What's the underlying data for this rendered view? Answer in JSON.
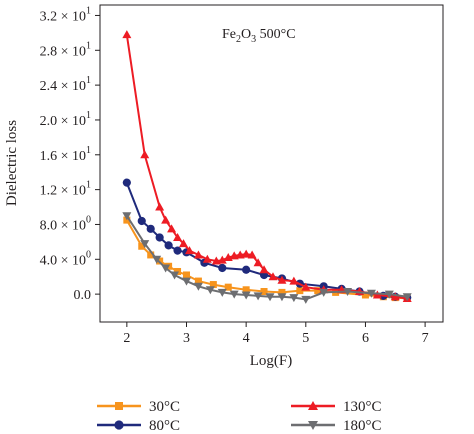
{
  "chart_data": {
    "type": "line",
    "annotation": {
      "base": "Fe",
      "sub1": "2",
      "mid": "O",
      "sub2": "3",
      "rest": " 500°C"
    },
    "xlabel": "Log(F)",
    "ylabel": "Dielectric loss",
    "xlim": [
      1.55,
      7.3
    ],
    "ylim": [
      -3.2,
      33.2
    ],
    "x_ticks": [
      2,
      3,
      4,
      5,
      6,
      7
    ],
    "x_tick_labels": [
      "2",
      "3",
      "4",
      "5",
      "6",
      "7"
    ],
    "y_ticks": [
      0,
      4,
      8,
      12,
      16,
      20,
      24,
      28,
      32
    ],
    "y_tick_labels": [
      {
        "mant": "0.0",
        "exp": ""
      },
      {
        "mant": "4.0 × 10",
        "exp": "0"
      },
      {
        "mant": "8.0 × 10",
        "exp": "0"
      },
      {
        "mant": "1.2 × 10",
        "exp": "1"
      },
      {
        "mant": "1.6 × 10",
        "exp": "1"
      },
      {
        "mant": "2.0 × 10",
        "exp": "1"
      },
      {
        "mant": "2.4 × 10",
        "exp": "1"
      },
      {
        "mant": "2.8 × 10",
        "exp": "1"
      },
      {
        "mant": "3.2 × 10",
        "exp": "1"
      }
    ],
    "grid": false,
    "legend_position": "bottom",
    "series": [
      {
        "name": "30°C",
        "color": "#f7941d",
        "marker": "square",
        "x": [
          2.0,
          2.25,
          2.4,
          2.55,
          2.7,
          2.85,
          3.0,
          3.2,
          3.45,
          3.7,
          4.0,
          4.3,
          4.6,
          4.9,
          5.2,
          5.5,
          6.0,
          6.3,
          6.5,
          6.7
        ],
        "y": [
          8.5,
          5.5,
          4.5,
          3.8,
          3.2,
          2.6,
          2.2,
          1.5,
          1.1,
          0.8,
          0.5,
          0.3,
          0.2,
          0.4,
          0.4,
          0.2,
          -0.1,
          -0.3,
          -0.4,
          -0.5
        ]
      },
      {
        "name": "80°C",
        "color": "#1f2a7c",
        "marker": "circle",
        "x": [
          2.0,
          2.25,
          2.4,
          2.55,
          2.7,
          2.85,
          3.0,
          3.3,
          3.6,
          4.0,
          4.3,
          4.6,
          4.9,
          5.3,
          5.6,
          5.9,
          6.3,
          6.5,
          6.7
        ],
        "y": [
          12.8,
          8.4,
          7.5,
          6.5,
          5.6,
          5.0,
          4.8,
          3.6,
          3.0,
          2.8,
          2.2,
          1.8,
          1.2,
          0.9,
          0.6,
          0.3,
          -0.2,
          -0.3,
          -0.4
        ]
      },
      {
        "name": "130°C",
        "color": "#ed1c24",
        "marker": "triangle",
        "x": [
          2.0,
          2.3,
          2.55,
          2.65,
          2.75,
          2.85,
          2.95,
          3.05,
          3.2,
          3.35,
          3.5,
          3.6,
          3.7,
          3.8,
          3.9,
          4.0,
          4.1,
          4.2,
          4.3,
          4.45,
          4.6,
          4.8,
          5.0,
          5.3,
          5.6,
          5.9,
          6.2,
          6.5,
          6.7
        ],
        "y": [
          29.8,
          16.0,
          10.0,
          8.5,
          7.5,
          6.5,
          5.8,
          5.0,
          4.5,
          4.0,
          3.8,
          3.9,
          4.2,
          4.4,
          4.5,
          4.6,
          4.5,
          3.6,
          2.8,
          2.0,
          1.6,
          1.5,
          0.8,
          0.5,
          0.5,
          0.3,
          -0.1,
          -0.3,
          -0.5
        ]
      },
      {
        "name": "180°C",
        "color": "#6d6e71",
        "marker": "triangle-down",
        "x": [
          2.0,
          2.3,
          2.5,
          2.65,
          2.8,
          3.0,
          3.2,
          3.4,
          3.6,
          3.8,
          4.0,
          4.2,
          4.4,
          4.6,
          4.8,
          5.0,
          5.3,
          5.7,
          6.1,
          6.4,
          6.7
        ],
        "y": [
          9.0,
          5.8,
          4.0,
          3.0,
          2.2,
          1.5,
          0.9,
          0.5,
          0.2,
          0.0,
          -0.1,
          -0.2,
          -0.3,
          -0.3,
          -0.4,
          -0.6,
          0.2,
          0.3,
          0.1,
          0.0,
          -0.3
        ]
      }
    ]
  }
}
